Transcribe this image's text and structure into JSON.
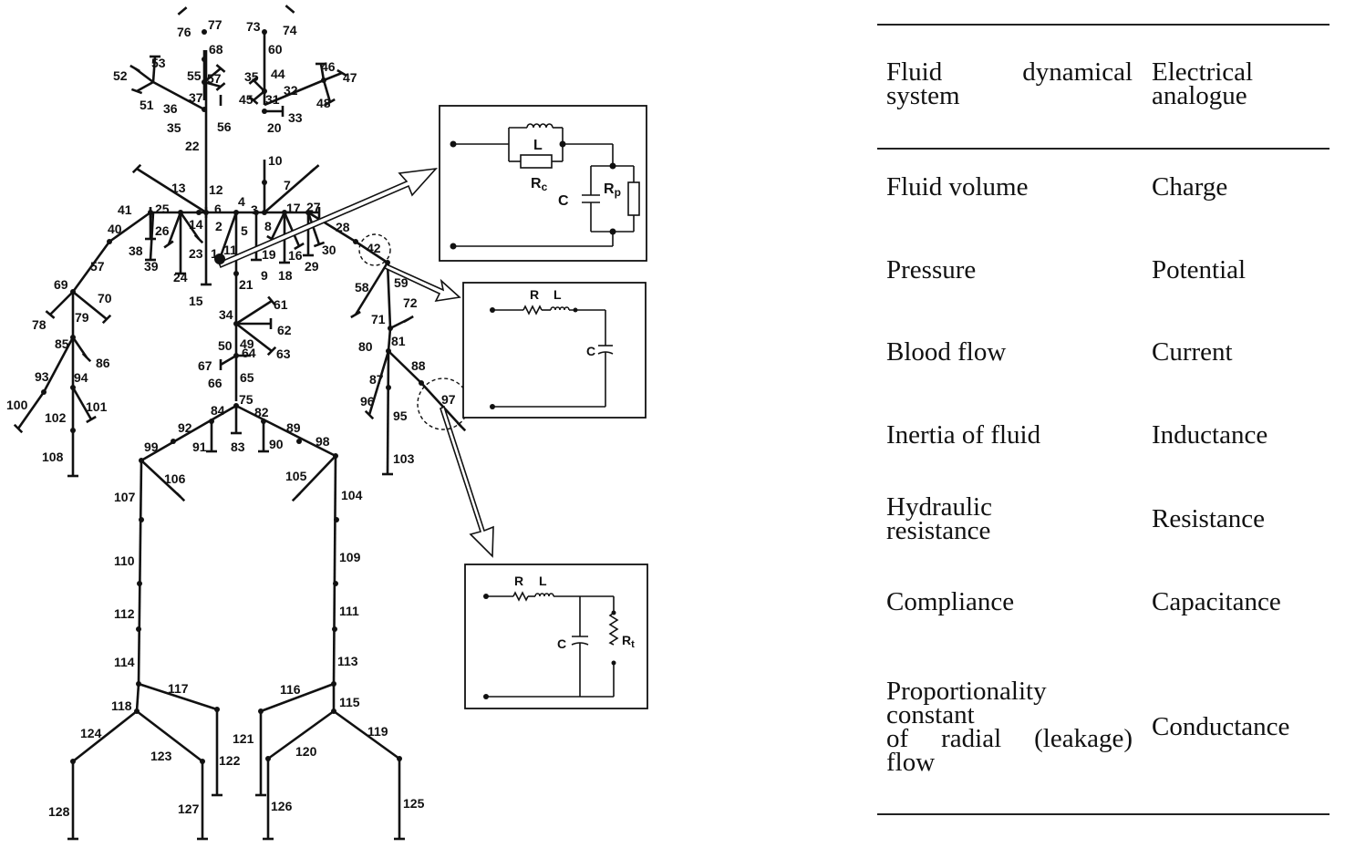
{
  "diagram": {
    "segment_labels": [
      "1",
      "2",
      "3",
      "4",
      "5",
      "6",
      "7",
      "8",
      "9",
      "10",
      "11",
      "12",
      "13",
      "14",
      "15",
      "16",
      "17",
      "18",
      "19",
      "20",
      "21",
      "22",
      "23",
      "24",
      "25",
      "26",
      "27",
      "28",
      "29",
      "30",
      "31",
      "32",
      "33",
      "34",
      "35",
      "35",
      "36",
      "37",
      "38",
      "39",
      "40",
      "41",
      "42",
      "44",
      "45",
      "46",
      "47",
      "48",
      "49",
      "50",
      "51",
      "52",
      "53",
      "55",
      "56",
      "57",
      "57",
      "58",
      "59",
      "60",
      "61",
      "62",
      "63",
      "64",
      "65",
      "66",
      "67",
      "68",
      "69",
      "70",
      "71",
      "72",
      "73",
      "74",
      "75",
      "76",
      "77",
      "78",
      "79",
      "80",
      "81",
      "82",
      "83",
      "84",
      "85",
      "86",
      "87",
      "88",
      "89",
      "90",
      "91",
      "92",
      "93",
      "94",
      "95",
      "96",
      "97",
      "98",
      "99",
      "100",
      "101",
      "102",
      "103",
      "104",
      "105",
      "106",
      "107",
      "108",
      "109",
      "110",
      "111",
      "112",
      "113",
      "114",
      "115",
      "116",
      "117",
      "118",
      "119",
      "120",
      "121",
      "122",
      "123",
      "124",
      "125",
      "126",
      "127",
      "128"
    ],
    "circuits": {
      "top": {
        "L": "L",
        "Rc_main": "R",
        "Rc_sub": "c",
        "C": "C",
        "Rp_main": "R",
        "Rp_sub": "p"
      },
      "middle": {
        "R": "R",
        "L": "L",
        "C": "C"
      },
      "bottom": {
        "R": "R",
        "L": "L",
        "C": "C",
        "Rt_main": "R",
        "Rt_sub": "t"
      }
    }
  },
  "table": {
    "headers": [
      {
        "line1": "Fluid dynamical",
        "line2": "system"
      },
      {
        "line1": "Electrical",
        "line2": "analogue"
      }
    ],
    "rows": [
      {
        "fluid": [
          "Fluid volume"
        ],
        "electrical": "Charge"
      },
      {
        "fluid": [
          "Pressure"
        ],
        "electrical": "Potential"
      },
      {
        "fluid": [
          "Blood flow"
        ],
        "electrical": "Current"
      },
      {
        "fluid": [
          "Inertia of fluid"
        ],
        "electrical": "Inductance"
      },
      {
        "fluid": [
          "Hydraulic",
          "resistance"
        ],
        "electrical": "Resistance"
      },
      {
        "fluid": [
          "Compliance"
        ],
        "electrical": "Capacitance"
      },
      {
        "fluid": [
          "Proportionality",
          "constant",
          "of radial (leakage)",
          "flow"
        ],
        "electrical": "Conductance"
      }
    ]
  }
}
